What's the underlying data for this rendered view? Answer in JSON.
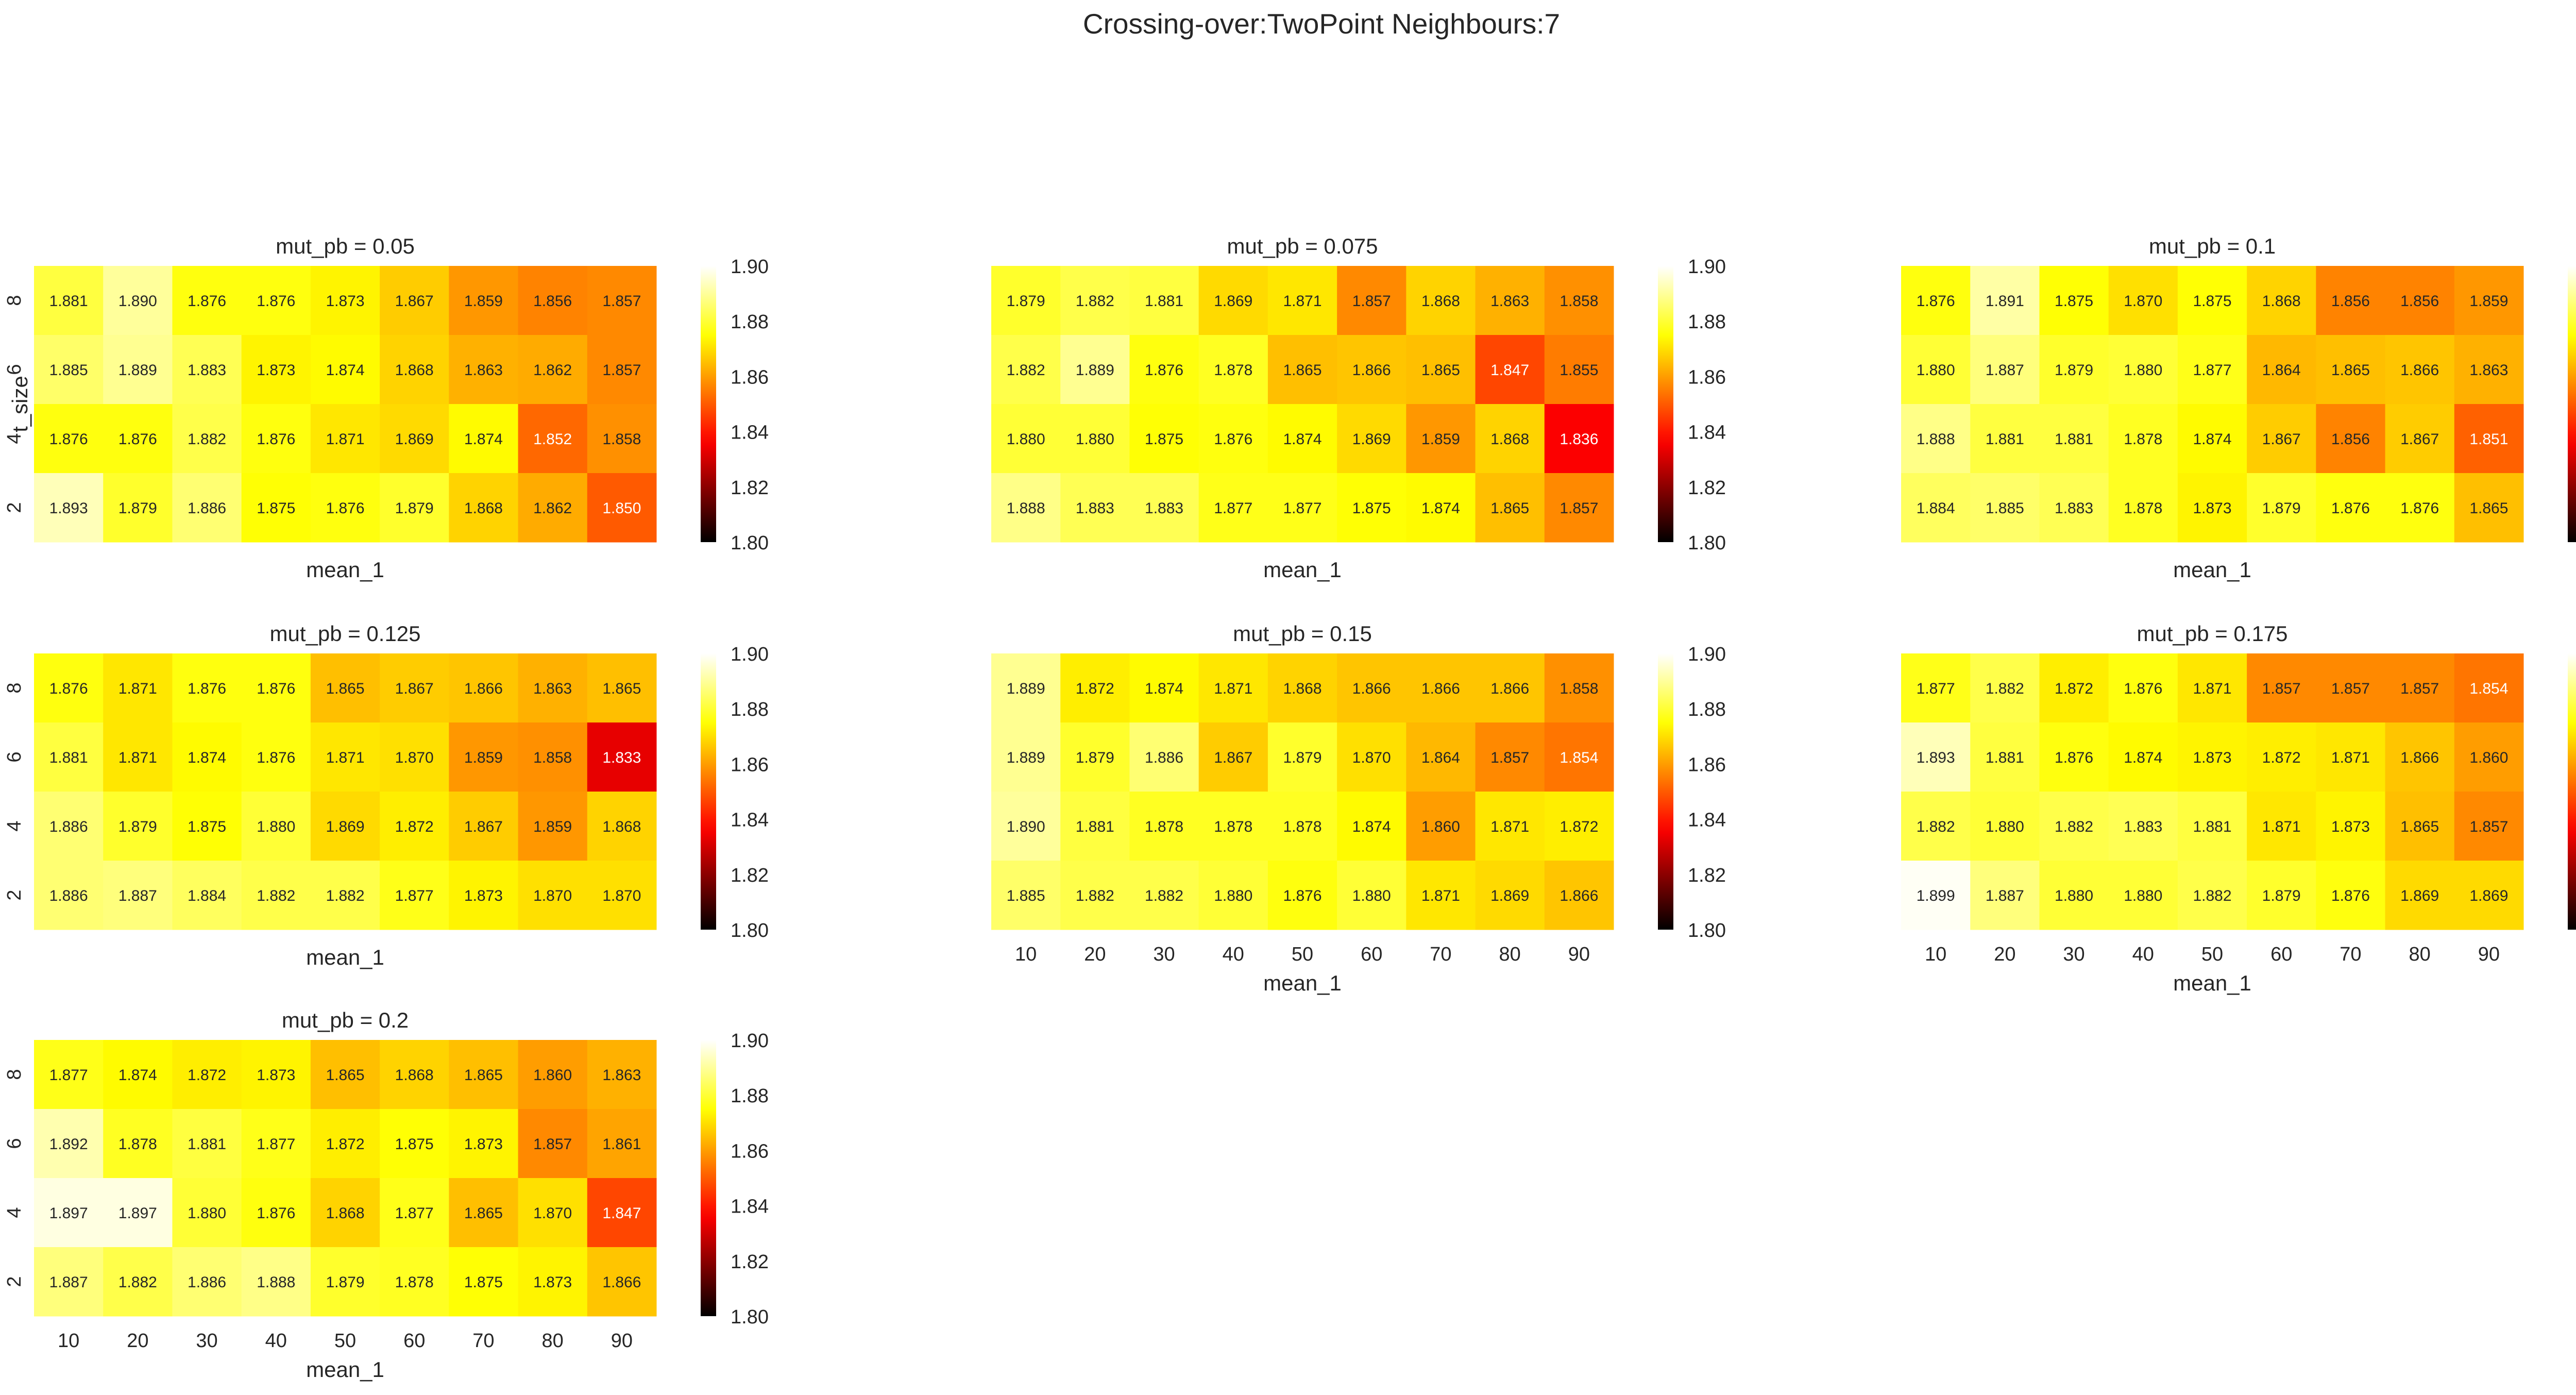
{
  "title": "Crossing-over:TwoPoint Neighbours:7",
  "colormap": {
    "name": "hot",
    "vmin": 1.8,
    "vmax": 1.9,
    "ticks": [
      "1.80",
      "1.82",
      "1.84",
      "1.86",
      "1.88",
      "1.90"
    ]
  },
  "chart_data": [
    {
      "type": "heatmap",
      "title": "mut_pb = 0.05",
      "xlabel": "mean_1",
      "ylabel": "t_size",
      "x": [
        10,
        20,
        30,
        40,
        50,
        60,
        70,
        80,
        90
      ],
      "y": [
        8,
        6,
        4,
        2
      ],
      "show_xticks": false,
      "show_yticks": true,
      "values": [
        [
          1.881,
          1.89,
          1.876,
          1.876,
          1.873,
          1.867,
          1.859,
          1.856,
          1.857
        ],
        [
          1.885,
          1.889,
          1.883,
          1.873,
          1.874,
          1.868,
          1.863,
          1.862,
          1.857
        ],
        [
          1.876,
          1.876,
          1.882,
          1.876,
          1.871,
          1.869,
          1.874,
          1.852,
          1.858
        ],
        [
          1.893,
          1.879,
          1.886,
          1.875,
          1.876,
          1.879,
          1.868,
          1.862,
          1.85
        ]
      ]
    },
    {
      "type": "heatmap",
      "title": "mut_pb = 0.075",
      "xlabel": "mean_1",
      "ylabel": "",
      "x": [
        10,
        20,
        30,
        40,
        50,
        60,
        70,
        80,
        90
      ],
      "y": [
        8,
        6,
        4,
        2
      ],
      "show_xticks": false,
      "show_yticks": false,
      "values": [
        [
          1.879,
          1.882,
          1.881,
          1.869,
          1.871,
          1.857,
          1.868,
          1.863,
          1.858
        ],
        [
          1.882,
          1.889,
          1.876,
          1.878,
          1.865,
          1.866,
          1.865,
          1.847,
          1.855
        ],
        [
          1.88,
          1.88,
          1.875,
          1.876,
          1.874,
          1.869,
          1.859,
          1.868,
          1.836
        ],
        [
          1.888,
          1.883,
          1.883,
          1.877,
          1.877,
          1.875,
          1.874,
          1.865,
          1.857
        ]
      ]
    },
    {
      "type": "heatmap",
      "title": "mut_pb = 0.1",
      "xlabel": "mean_1",
      "ylabel": "",
      "x": [
        10,
        20,
        30,
        40,
        50,
        60,
        70,
        80,
        90
      ],
      "y": [
        8,
        6,
        4,
        2
      ],
      "show_xticks": false,
      "show_yticks": false,
      "values": [
        [
          1.876,
          1.891,
          1.875,
          1.87,
          1.875,
          1.868,
          1.856,
          1.856,
          1.859
        ],
        [
          1.88,
          1.887,
          1.879,
          1.88,
          1.877,
          1.864,
          1.865,
          1.866,
          1.863
        ],
        [
          1.888,
          1.881,
          1.881,
          1.878,
          1.874,
          1.867,
          1.856,
          1.867,
          1.851
        ],
        [
          1.884,
          1.885,
          1.883,
          1.878,
          1.873,
          1.879,
          1.876,
          1.876,
          1.865
        ]
      ]
    },
    {
      "type": "heatmap",
      "title": "mut_pb = 0.125",
      "xlabel": "mean_1",
      "ylabel": "",
      "x": [
        10,
        20,
        30,
        40,
        50,
        60,
        70,
        80,
        90
      ],
      "y": [
        8,
        6,
        4,
        2
      ],
      "show_xticks": false,
      "show_yticks": true,
      "values": [
        [
          1.876,
          1.871,
          1.876,
          1.876,
          1.865,
          1.867,
          1.866,
          1.863,
          1.865
        ],
        [
          1.881,
          1.871,
          1.874,
          1.876,
          1.871,
          1.87,
          1.859,
          1.858,
          1.833
        ],
        [
          1.886,
          1.879,
          1.875,
          1.88,
          1.869,
          1.872,
          1.867,
          1.859,
          1.868
        ],
        [
          1.886,
          1.887,
          1.884,
          1.882,
          1.882,
          1.877,
          1.873,
          1.87,
          1.87
        ]
      ]
    },
    {
      "type": "heatmap",
      "title": "mut_pb = 0.15",
      "xlabel": "mean_1",
      "ylabel": "",
      "x": [
        10,
        20,
        30,
        40,
        50,
        60,
        70,
        80,
        90
      ],
      "y": [
        8,
        6,
        4,
        2
      ],
      "show_xticks": true,
      "show_yticks": false,
      "values": [
        [
          1.889,
          1.872,
          1.874,
          1.871,
          1.868,
          1.866,
          1.866,
          1.866,
          1.858
        ],
        [
          1.889,
          1.879,
          1.886,
          1.867,
          1.879,
          1.87,
          1.864,
          1.857,
          1.854
        ],
        [
          1.89,
          1.881,
          1.878,
          1.878,
          1.878,
          1.874,
          1.86,
          1.871,
          1.872
        ],
        [
          1.885,
          1.882,
          1.882,
          1.88,
          1.876,
          1.88,
          1.871,
          1.869,
          1.866
        ]
      ]
    },
    {
      "type": "heatmap",
      "title": "mut_pb = 0.175",
      "xlabel": "mean_1",
      "ylabel": "",
      "x": [
        10,
        20,
        30,
        40,
        50,
        60,
        70,
        80,
        90
      ],
      "y": [
        8,
        6,
        4,
        2
      ],
      "show_xticks": true,
      "show_yticks": false,
      "values": [
        [
          1.877,
          1.882,
          1.872,
          1.876,
          1.871,
          1.857,
          1.857,
          1.857,
          1.854
        ],
        [
          1.893,
          1.881,
          1.876,
          1.874,
          1.873,
          1.872,
          1.871,
          1.866,
          1.86
        ],
        [
          1.882,
          1.88,
          1.882,
          1.883,
          1.881,
          1.871,
          1.873,
          1.865,
          1.857
        ],
        [
          1.899,
          1.887,
          1.88,
          1.88,
          1.882,
          1.879,
          1.876,
          1.869,
          1.869
        ]
      ]
    },
    {
      "type": "heatmap",
      "title": "mut_pb = 0.2",
      "xlabel": "mean_1",
      "ylabel": "",
      "x": [
        10,
        20,
        30,
        40,
        50,
        60,
        70,
        80,
        90
      ],
      "y": [
        8,
        6,
        4,
        2
      ],
      "show_xticks": true,
      "show_yticks": true,
      "values": [
        [
          1.877,
          1.874,
          1.872,
          1.873,
          1.865,
          1.868,
          1.865,
          1.86,
          1.863
        ],
        [
          1.892,
          1.878,
          1.881,
          1.877,
          1.872,
          1.875,
          1.873,
          1.857,
          1.861
        ],
        [
          1.897,
          1.897,
          1.88,
          1.876,
          1.868,
          1.877,
          1.865,
          1.87,
          1.847
        ],
        [
          1.887,
          1.882,
          1.886,
          1.888,
          1.879,
          1.878,
          1.875,
          1.873,
          1.866
        ]
      ]
    }
  ]
}
